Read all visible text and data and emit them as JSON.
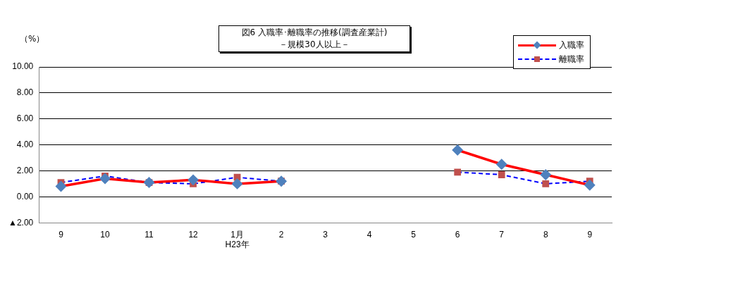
{
  "chart_data": {
    "type": "line",
    "title": "図6  入職率･離職率の推移(調査産業計)",
    "subtitle": "－規模30人以上－",
    "ylabel": "（%）",
    "categories": [
      "9",
      "10",
      "11",
      "12",
      "1月\nH23年",
      "2",
      "3",
      "4",
      "5",
      "6",
      "7",
      "8",
      "9"
    ],
    "series": [
      {
        "name": "入職率",
        "color": "#ff0000",
        "marker": "diamond",
        "line_style": "solid",
        "values": [
          0.8,
          1.4,
          1.1,
          1.3,
          1.0,
          1.2,
          null,
          null,
          null,
          3.6,
          2.5,
          1.7,
          0.9
        ]
      },
      {
        "name": "離職率",
        "color": "#0000ff",
        "marker": "square",
        "line_style": "dashed",
        "values": [
          1.1,
          1.6,
          1.1,
          1.0,
          1.5,
          1.2,
          null,
          null,
          null,
          1.9,
          1.7,
          1.0,
          1.2
        ]
      }
    ],
    "ylim": [
      -2,
      10
    ],
    "yticks": [
      {
        "value": -2,
        "label": "▲2.00"
      },
      {
        "value": 0,
        "label": "0.00"
      },
      {
        "value": 2,
        "label": "2.00"
      },
      {
        "value": 4,
        "label": "4.00"
      },
      {
        "value": 6,
        "label": "6.00"
      },
      {
        "value": 8,
        "label": "8.00"
      },
      {
        "value": 10,
        "label": "10.00"
      }
    ],
    "grid": "y",
    "legend": "top right"
  }
}
